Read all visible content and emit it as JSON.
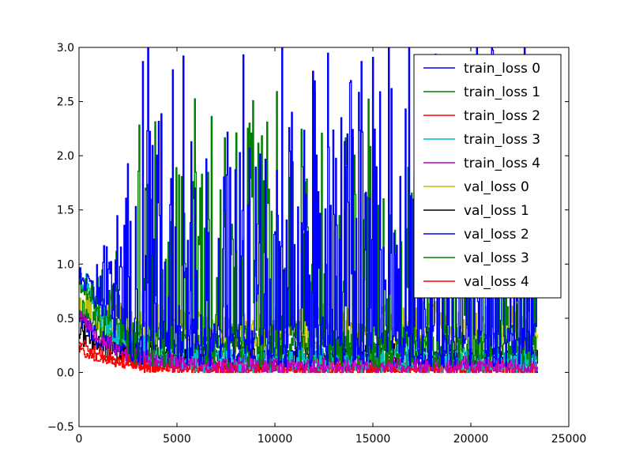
{
  "chart_data": {
    "type": "line",
    "title": "",
    "xlabel": "",
    "ylabel": "",
    "xlim": [
      0,
      25000
    ],
    "ylim": [
      -0.5,
      3.0
    ],
    "xticks": [
      0,
      5000,
      10000,
      15000,
      20000,
      25000
    ],
    "xtick_labels": [
      "0",
      "5000",
      "10000",
      "15000",
      "20000",
      "25000"
    ],
    "yticks": [
      -0.5,
      0.0,
      0.5,
      1.0,
      1.5,
      2.0,
      2.5,
      3.0
    ],
    "ytick_labels": [
      "−0.5",
      "0.0",
      "0.5",
      "1.0",
      "1.5",
      "2.0",
      "2.5",
      "3.0"
    ],
    "grid": false,
    "legend_position": "top-right",
    "x_end": 23400,
    "series": [
      {
        "name": "train_loss 0",
        "color": "#0000ff",
        "start": 0.8,
        "floor": 0.0,
        "mid": 1.1,
        "amp": 2.2,
        "end": 1.1,
        "style": "spiky",
        "seed": 11
      },
      {
        "name": "train_loss 1",
        "color": "#008000",
        "start": 0.7,
        "floor": 0.0,
        "mid": 0.9,
        "amp": 1.8,
        "end": 1.0,
        "style": "spiky",
        "seed": 23
      },
      {
        "name": "train_loss 2",
        "color": "#ff0000",
        "start": 0.3,
        "floor": 0.0,
        "mid": 0.02,
        "amp": 0.18,
        "end": 0.02,
        "style": "noise",
        "seed": 37
      },
      {
        "name": "train_loss 3",
        "color": "#00bfbf",
        "start": 0.9,
        "floor": 0.0,
        "mid": 0.08,
        "amp": 0.3,
        "end": 0.05,
        "style": "noise",
        "seed": 41
      },
      {
        "name": "train_loss 4",
        "color": "#bf00bf",
        "start": 0.55,
        "floor": 0.0,
        "mid": 0.05,
        "amp": 0.2,
        "end": 0.03,
        "style": "noise",
        "seed": 53
      },
      {
        "name": "val_loss 0",
        "color": "#bfbf00",
        "start": 0.6,
        "floor": 0.05,
        "mid": 0.35,
        "amp": 0.55,
        "end": 0.35,
        "style": "noise",
        "seed": 67
      },
      {
        "name": "val_loss 1",
        "color": "#000000",
        "start": 0.35,
        "floor": 0.0,
        "mid": 0.1,
        "amp": 0.3,
        "end": 0.08,
        "style": "noise",
        "seed": 71
      },
      {
        "name": "val_loss 2",
        "color": "#0000ff",
        "start": 0.5,
        "floor": 0.0,
        "mid": 0.08,
        "amp": 0.25,
        "end": 0.05,
        "style": "noise",
        "seed": 83
      },
      {
        "name": "val_loss 3",
        "color": "#008000",
        "start": 0.6,
        "floor": 0.05,
        "mid": 0.2,
        "amp": 0.4,
        "end": 0.15,
        "style": "noise",
        "seed": 97
      },
      {
        "name": "val_loss 4",
        "color": "#ff0000",
        "start": 0.2,
        "floor": 0.0,
        "mid": 0.03,
        "amp": 0.12,
        "end": 0.02,
        "style": "noise",
        "seed": 101
      }
    ]
  }
}
